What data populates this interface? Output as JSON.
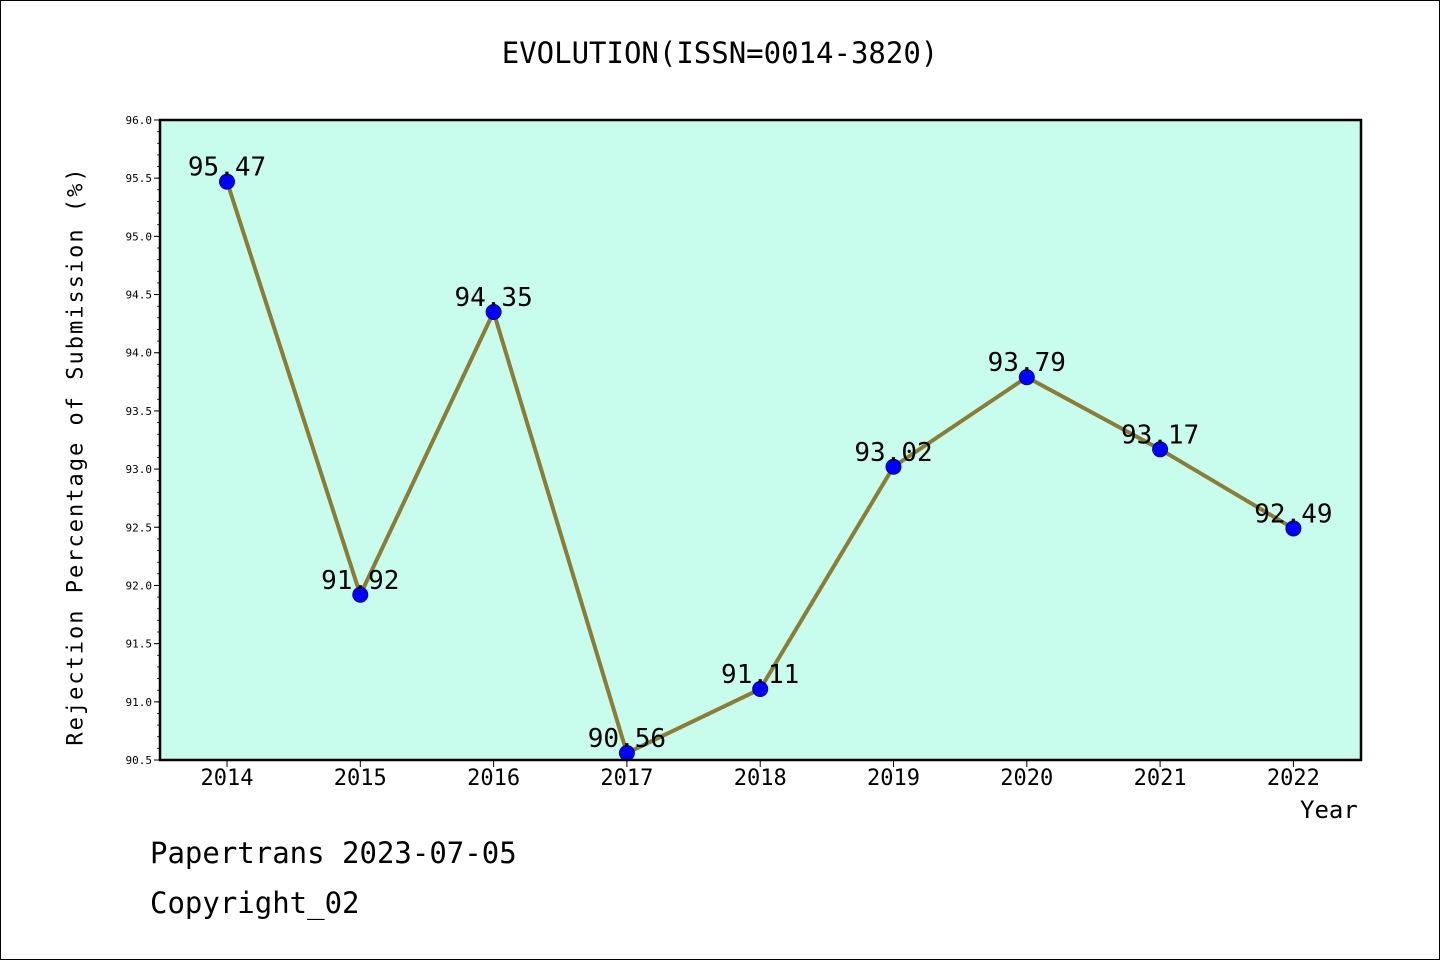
{
  "footer": {
    "line1": "Papertrans 2023-07-05",
    "line2": "Copyright_02"
  },
  "chart_data": {
    "type": "line",
    "title": "EVOLUTION(ISSN=0014-3820)",
    "xlabel": "Year",
    "ylabel": "Rejection Percentage of Submission (%)",
    "categories": [
      "2014",
      "2015",
      "2016",
      "2017",
      "2018",
      "2019",
      "2020",
      "2021",
      "2022"
    ],
    "series": [
      {
        "values": [
          95.47,
          91.92,
          94.35,
          90.56,
          91.11,
          93.02,
          93.79,
          93.17,
          92.49
        ]
      }
    ],
    "data_labels": [
      "95.47",
      "91.92",
      "94.35",
      "90.56",
      "91.11",
      "93.02",
      "93.79",
      "93.17",
      "92.49"
    ],
    "ylim": [
      90.5,
      96.0
    ],
    "yticks": [
      "90.5",
      "91.0",
      "91.5",
      "92.0",
      "92.5",
      "93.0",
      "93.5",
      "94.0",
      "94.5",
      "95.0",
      "95.5",
      "96.0"
    ],
    "grid": false,
    "colors": {
      "plot_bg": "#c8fced",
      "line": "#8b7d35",
      "marker": "#0000ff",
      "marker_edge": "#00008b"
    }
  }
}
